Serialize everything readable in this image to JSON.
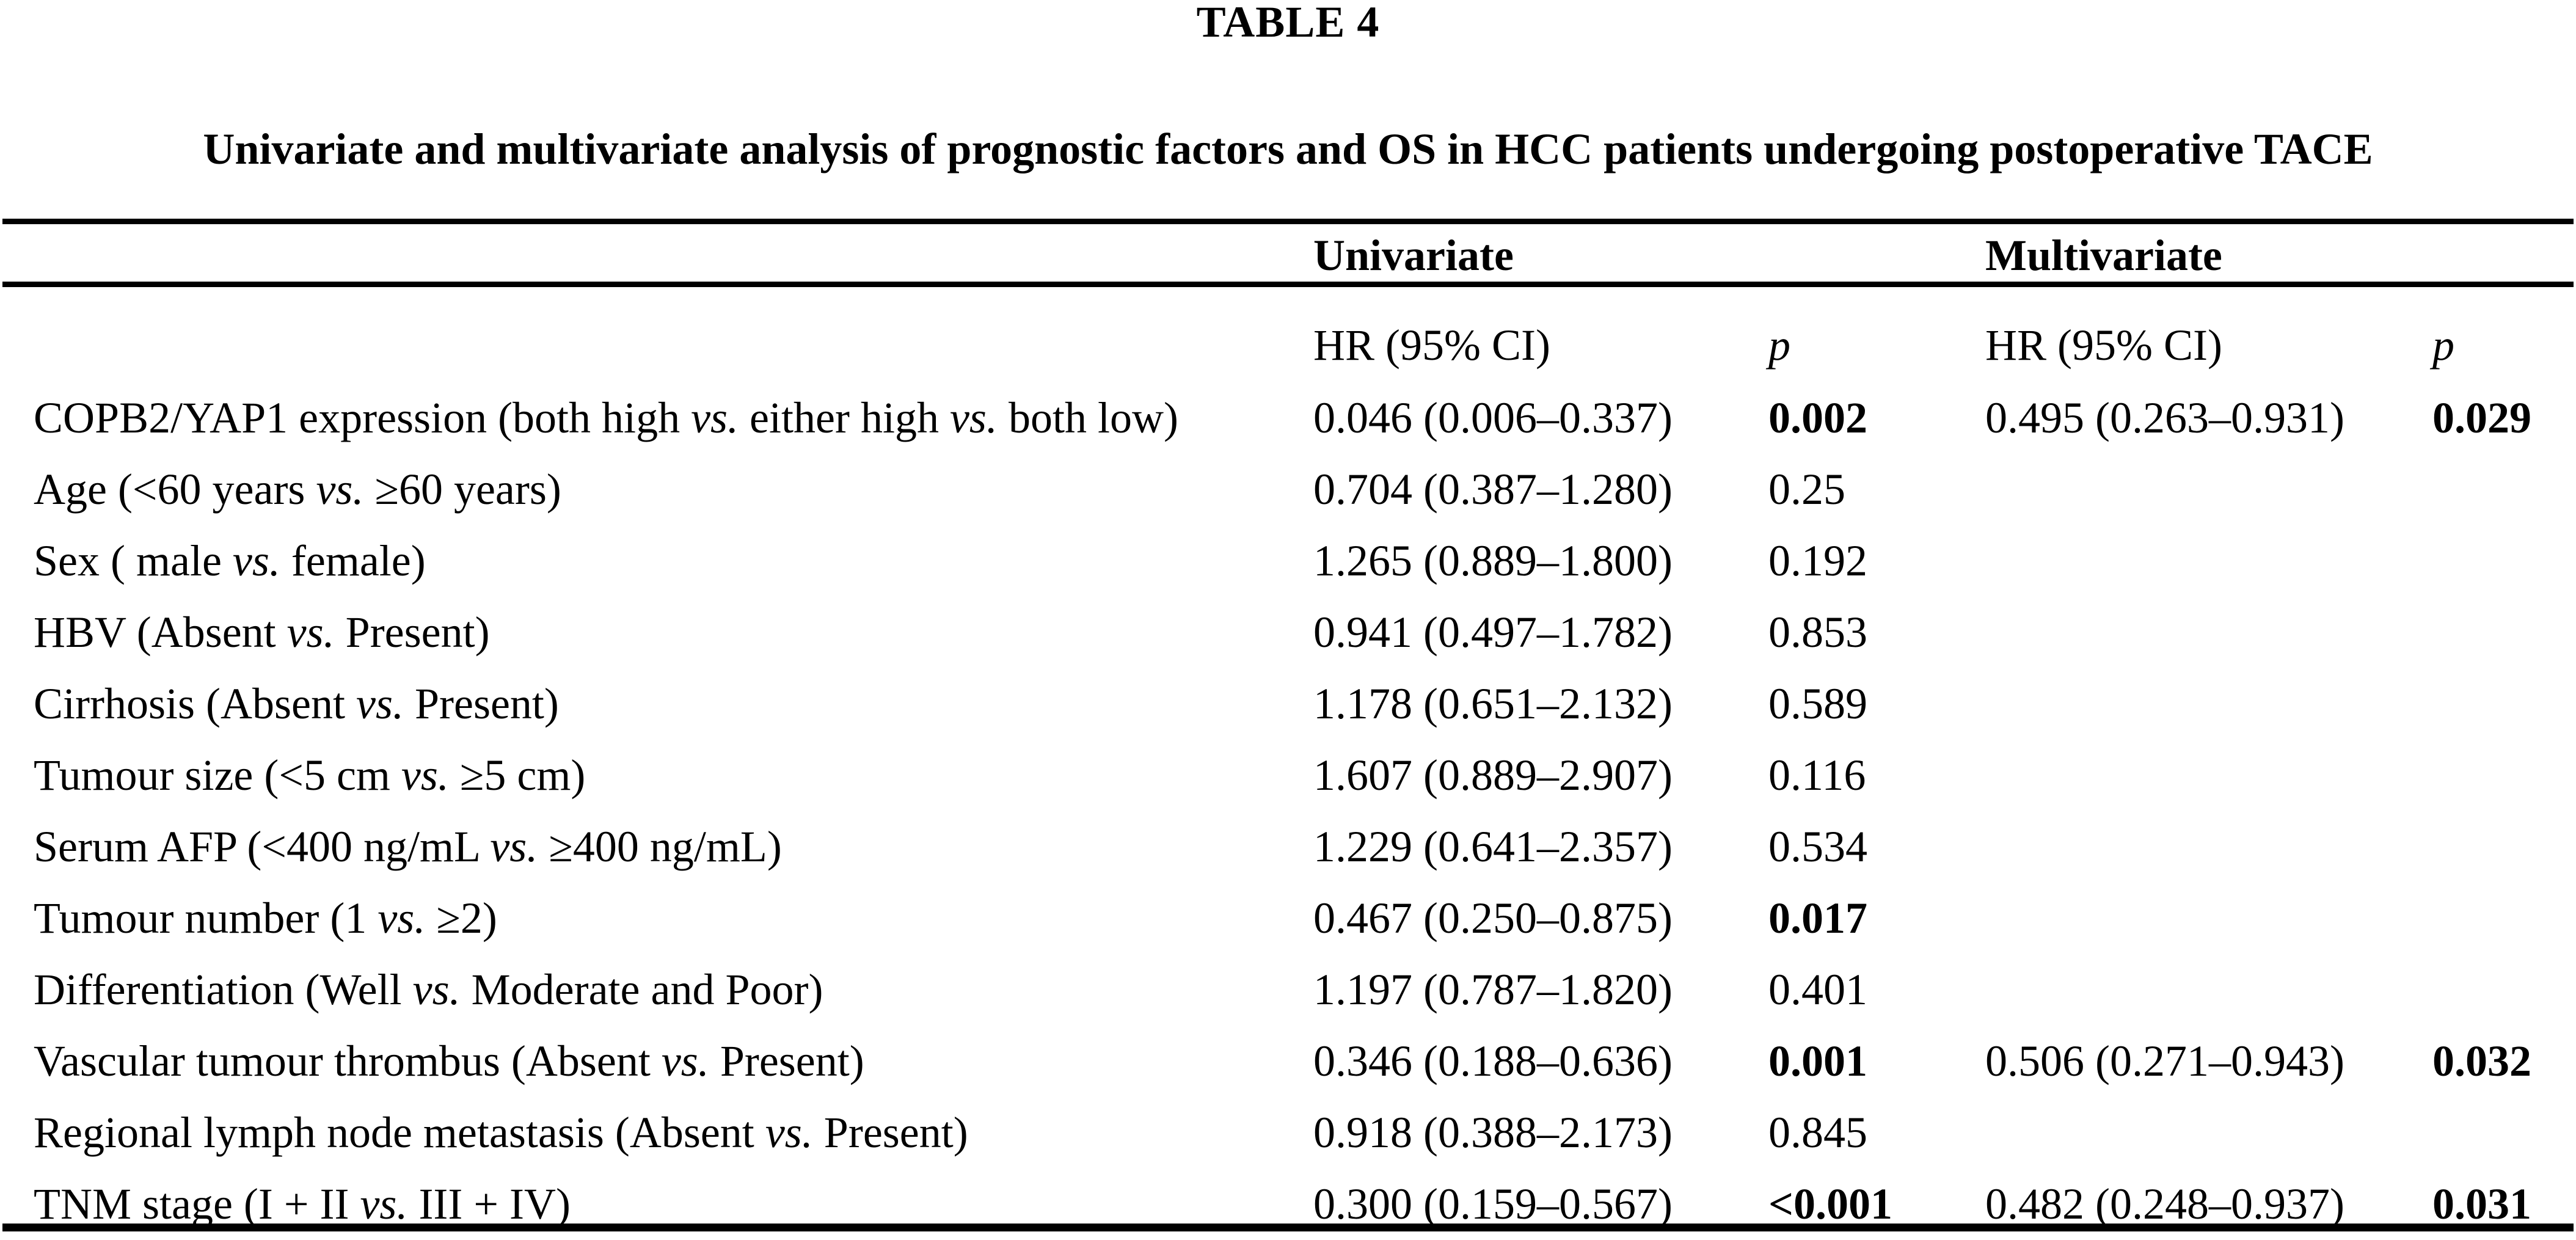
{
  "title": "TABLE 4",
  "subtitle": "Univariate and multivariate analysis of prognostic factors and OS in HCC patients undergoing postoperative TACE",
  "table": {
    "group_headers": [
      "Univariate",
      "Multivariate"
    ],
    "sub_headers": [
      "HR (95% CI)",
      "p",
      "HR (95% CI)",
      "p"
    ],
    "rows": [
      {
        "factor": "COPB2/YAP1 expression (both high vs. either high vs. both low)",
        "uni_hr": "0.046 (0.006–0.337)",
        "uni_p": "0.002",
        "uni_p_bold": true,
        "multi_hr": "0.495 (0.263–0.931)",
        "multi_p": "0.029",
        "multi_p_bold": true
      },
      {
        "factor": "Age (<60 years vs. ≥60 years)",
        "uni_hr": "0.704 (0.387–1.280)",
        "uni_p": "0.25",
        "uni_p_bold": false,
        "multi_hr": "",
        "multi_p": "",
        "multi_p_bold": false
      },
      {
        "factor": "Sex ( male vs. female)",
        "uni_hr": "1.265 (0.889–1.800)",
        "uni_p": "0.192",
        "uni_p_bold": false,
        "multi_hr": "",
        "multi_p": "",
        "multi_p_bold": false
      },
      {
        "factor": "HBV (Absent vs. Present)",
        "uni_hr": "0.941 (0.497–1.782)",
        "uni_p": "0.853",
        "uni_p_bold": false,
        "multi_hr": "",
        "multi_p": "",
        "multi_p_bold": false
      },
      {
        "factor": "Cirrhosis (Absent vs. Present)",
        "uni_hr": "1.178 (0.651–2.132)",
        "uni_p": "0.589",
        "uni_p_bold": false,
        "multi_hr": "",
        "multi_p": "",
        "multi_p_bold": false
      },
      {
        "factor": "Tumour size (<5 cm vs. ≥5 cm)",
        "uni_hr": "1.607 (0.889–2.907)",
        "uni_p": "0.116",
        "uni_p_bold": false,
        "multi_hr": "",
        "multi_p": "",
        "multi_p_bold": false
      },
      {
        "factor": "Serum AFP (<400 ng/mL vs. ≥400 ng/mL)",
        "uni_hr": "1.229 (0.641–2.357)",
        "uni_p": "0.534",
        "uni_p_bold": false,
        "multi_hr": "",
        "multi_p": "",
        "multi_p_bold": false
      },
      {
        "factor": "Tumour number (1 vs. ≥2)",
        "uni_hr": "0.467 (0.250–0.875)",
        "uni_p": "0.017",
        "uni_p_bold": true,
        "multi_hr": "",
        "multi_p": "",
        "multi_p_bold": false
      },
      {
        "factor": "Differentiation (Well vs. Moderate and Poor)",
        "uni_hr": "1.197 (0.787–1.820)",
        "uni_p": "0.401",
        "uni_p_bold": false,
        "multi_hr": "",
        "multi_p": "",
        "multi_p_bold": false
      },
      {
        "factor": "Vascular tumour thrombus (Absent vs. Present)",
        "uni_hr": "0.346 (0.188–0.636)",
        "uni_p": "0.001",
        "uni_p_bold": true,
        "multi_hr": "0.506 (0.271–0.943)",
        "multi_p": "0.032",
        "multi_p_bold": true
      },
      {
        "factor": "Regional lymph node metastasis (Absent vs. Present)",
        "uni_hr": "0.918 (0.388–2.173)",
        "uni_p": "0.845",
        "uni_p_bold": false,
        "multi_hr": "",
        "multi_p": "",
        "multi_p_bold": false
      },
      {
        "factor": "TNM stage (I + II vs. III + IV)",
        "uni_hr": "0.300 (0.159–0.567)",
        "uni_p": "<0.001",
        "uni_p_bold": true,
        "multi_hr": "0.482 (0.248–0.937)",
        "multi_p": "0.031",
        "multi_p_bold": true
      }
    ]
  }
}
